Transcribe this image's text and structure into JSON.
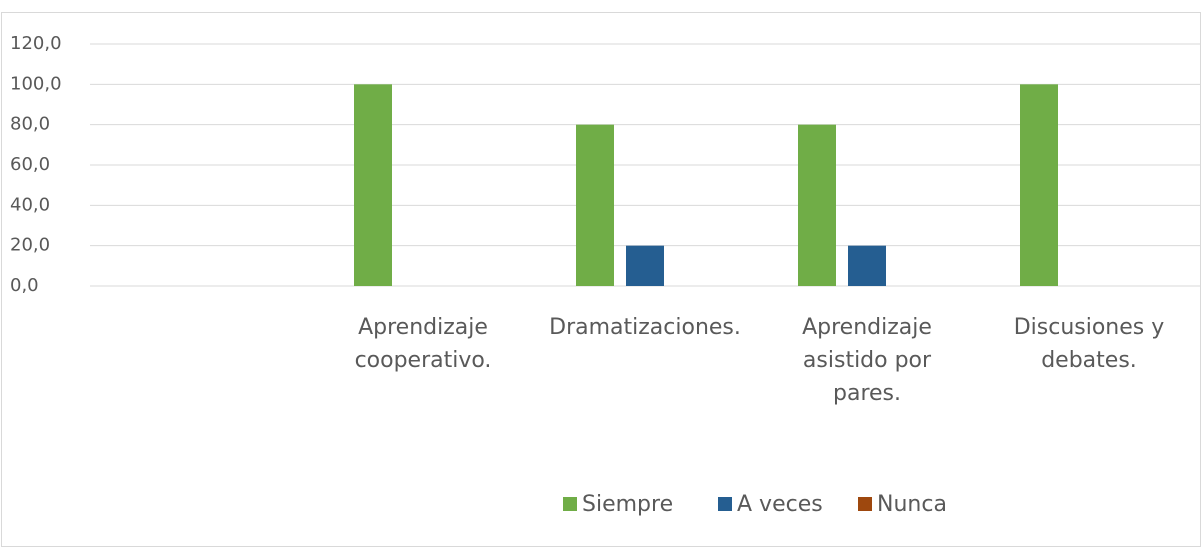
{
  "chart_data": {
    "type": "bar",
    "categories": [
      null,
      "Aprendizaje cooperativo.",
      "Dramatizaciones.",
      "Aprendizaje asistido por pares.",
      "Discusiones y debates."
    ],
    "series": [
      {
        "name": "Siempre",
        "color": "#70ad47",
        "values": [
          null,
          100,
          80,
          80,
          100
        ]
      },
      {
        "name": "A veces",
        "color": "#255e91",
        "values": [
          null,
          0,
          20,
          20,
          0
        ]
      },
      {
        "name": "Nunca",
        "color": "#9e480e",
        "values": [
          null,
          0,
          0,
          0,
          0
        ]
      }
    ],
    "ylim": [
      0,
      120
    ],
    "yticks": [
      {
        "value": 0,
        "label": "0,0"
      },
      {
        "value": 20,
        "label": "20,0"
      },
      {
        "value": 40,
        "label": "40,0"
      },
      {
        "value": 60,
        "label": "60,0"
      },
      {
        "value": 80,
        "label": "80,0"
      },
      {
        "value": 100,
        "label": "100,0"
      },
      {
        "value": 120,
        "label": "120,0"
      }
    ],
    "grid": true,
    "legend": "bottom"
  }
}
